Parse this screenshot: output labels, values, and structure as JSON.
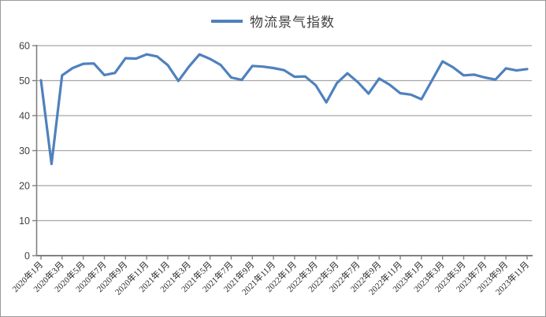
{
  "chart_data": {
    "type": "line",
    "series_name": "物流景气指数",
    "categories": [
      "2020年1月",
      "2020年2月",
      "2020年3月",
      "2020年4月",
      "2020年5月",
      "2020年6月",
      "2020年7月",
      "2020年8月",
      "2020年9月",
      "2020年10月",
      "2020年11月",
      "2020年12月",
      "2021年1月",
      "2021年2月",
      "2021年3月",
      "2021年4月",
      "2021年5月",
      "2021年6月",
      "2021年7月",
      "2021年8月",
      "2021年9月",
      "2021年10月",
      "2021年11月",
      "2021年12月",
      "2022年1月",
      "2022年2月",
      "2022年3月",
      "2022年4月",
      "2022年5月",
      "2022年6月",
      "2022年7月",
      "2022年8月",
      "2022年9月",
      "2022年10月",
      "2022年11月",
      "2022年12月",
      "2023年1月",
      "2023年2月",
      "2023年3月",
      "2023年4月",
      "2023年5月",
      "2023年6月",
      "2023年7月",
      "2023年8月",
      "2023年9月",
      "2023年10月",
      "2023年11月"
    ],
    "values": [
      50.1,
      26.2,
      51.5,
      53.6,
      54.8,
      54.9,
      51.6,
      52.2,
      56.4,
      56.3,
      57.5,
      56.9,
      54.4,
      49.9,
      54.0,
      57.5,
      56.2,
      54.5,
      50.9,
      50.2,
      54.2,
      54.0,
      53.6,
      53.0,
      51.1,
      51.2,
      48.7,
      43.8,
      49.3,
      52.1,
      49.5,
      46.3,
      50.6,
      48.8,
      46.4,
      46.0,
      44.7,
      50.1,
      55.5,
      53.8,
      51.5,
      51.7,
      50.9,
      50.3,
      53.5,
      52.9,
      53.3
    ],
    "title": "",
    "xlabel": "",
    "ylabel": "",
    "ylim": [
      0,
      60
    ],
    "ytick_step": 10,
    "x_label_interval": 2,
    "grid": true,
    "legend_position": "top-center",
    "line_color": "#4F81BD",
    "gridline_color": "#A6A6A6",
    "axis_color": "#808080",
    "ylabel_color": "#404040",
    "xlabel_color": "#262626"
  }
}
